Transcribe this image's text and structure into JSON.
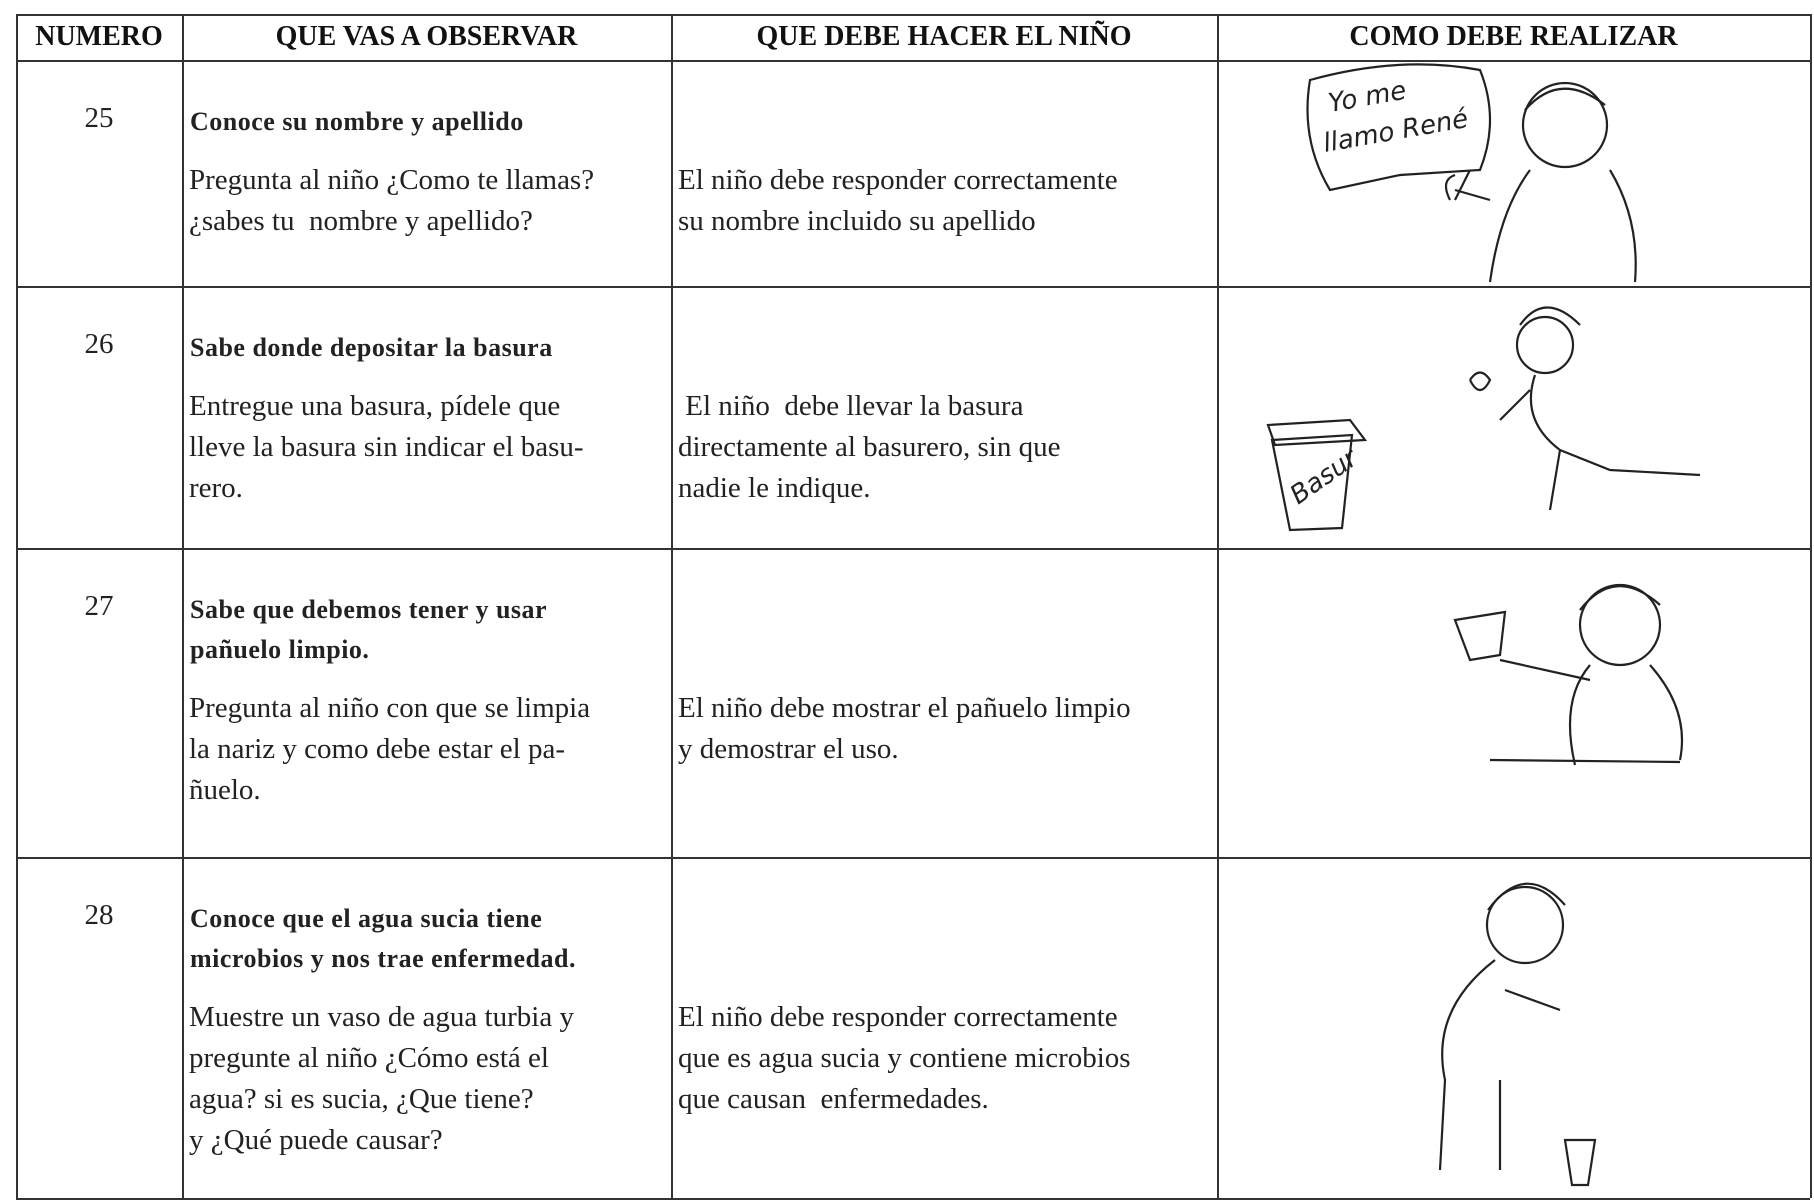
{
  "table": {
    "header": [
      "NUMERO",
      "QUE VAS A OBSERVAR",
      "QUE DEBE HACER EL NIÑO",
      "COMO DEBE REALIZAR"
    ],
    "rows": [
      {
        "number": "25",
        "observe_title": [
          "Conoce su nombre y apellido"
        ],
        "observe": [
          "Pregunta al niño ¿Como te llamas?",
          "¿sabes tu  nombre y apellido?"
        ],
        "child_does": [
          "El niño debe responder correctamente",
          "su nombre incluido su apellido"
        ]
      },
      {
        "number": "26",
        "observe_title": [
          "Sabe donde depositar la basura"
        ],
        "observe": [
          "Entregue una basura, pídele que",
          "lleve la basura sin indicar el basu-",
          "rero."
        ],
        "child_does": [
          " El niño  debe llevar la basura",
          "directamente al basurero, sin que",
          "nadie le indique."
        ]
      },
      {
        "number": "27",
        "observe_title": [
          "Sabe que debemos tener y usar",
          "pañuelo limpio."
        ],
        "observe": [
          "Pregunta al niño con que se limpia",
          "la nariz y como debe estar el pa-",
          "ñuelo."
        ],
        "child_does": [
          "El niño debe mostrar el pañuelo limpio",
          "y demostrar el uso."
        ]
      },
      {
        "number": "28",
        "observe_title": [
          "Conoce que el agua sucia tiene",
          "microbios y nos trae enfermedad."
        ],
        "observe": [
          "Muestre un vaso de agua turbia y",
          "pregunte al niño ¿Cómo está el",
          "agua? si es sucia, ¿Que tiene?",
          "y ¿Qué puede causar?"
        ],
        "child_does": [
          "El niño debe responder correctamente",
          "que es agua sucia y contiene microbios",
          "que causan  enfermedades."
        ]
      }
    ]
  },
  "illustrations": {
    "bubble": [
      "Yo me",
      "llamo René"
    ],
    "bin_label": "Basur"
  }
}
